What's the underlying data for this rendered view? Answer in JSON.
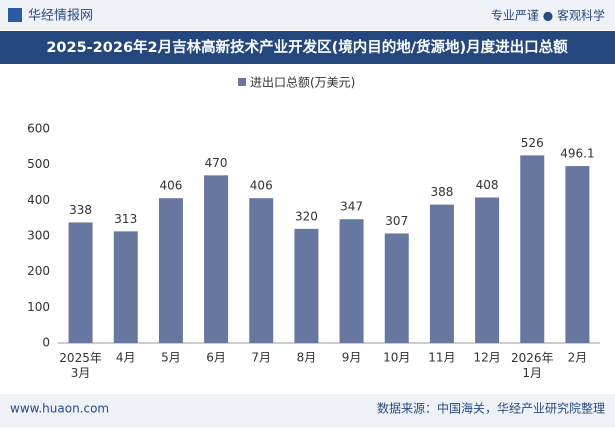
{
  "header": {
    "logo": "华经情报网",
    "slogan": "专业严谨 ● 客观科学"
  },
  "chart_data": {
    "type": "bar",
    "title": "2025-2026年2月吉林高新技术产业开发区(境内目的地/货源地)月度进出口总额",
    "categories": [
      "2025年\n3月",
      "4月",
      "5月",
      "6月",
      "7月",
      "8月",
      "9月",
      "10月",
      "11月",
      "12月",
      "2026年\n1月",
      "2月"
    ],
    "series": [
      {
        "name": "进出口总额(万美元)",
        "color": "#67779f",
        "values": [
          338,
          313,
          406,
          470,
          406,
          320,
          347,
          307,
          388,
          408,
          526,
          496.1
        ]
      }
    ],
    "ylim": [
      0,
      600
    ],
    "yticks": [
      0,
      100,
      200,
      300,
      400,
      500,
      600
    ],
    "grid": false,
    "legend": "top"
  },
  "footer": {
    "website": "www.huaon.com",
    "source": "数据来源：中国海关，华经产业研究院整理"
  }
}
